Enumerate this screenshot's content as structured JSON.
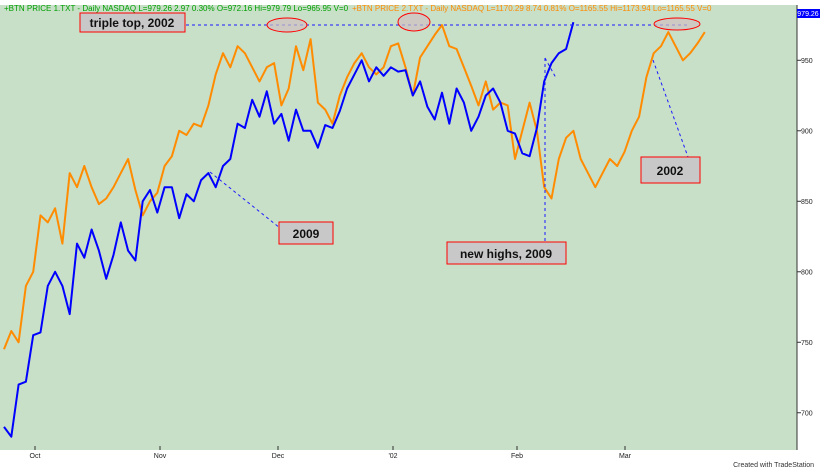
{
  "header": {
    "series1_text": "+BTN PRICE 1.TXT - Daily  NASDAQ  L=979.26  2.97  0.30%  O=972.16  Hi=979.79  Lo=965.95  V=0",
    "series2_text": "+BTN PRICE 2.TXT - Daily  NASDAQ  L=1170.29  8.74  0.81%  O=1165.55  Hi=1173.94  Lo=1165.55  V=0"
  },
  "credit": "Created with TradeStation",
  "last_price_tag": "979.26",
  "colors": {
    "background": "#c8dfc8",
    "series1": "#0000ff",
    "series2": "#ff8c00",
    "annotation_fill": "#c8c8c8",
    "annotation_border": "#ff0000",
    "dashed": "#1a1aff"
  },
  "annotations": [
    {
      "id": "triple-top-label",
      "text": "triple top, 2002"
    },
    {
      "id": "label-2009",
      "text": "2009"
    },
    {
      "id": "new-highs-label",
      "text": "new highs, 2009"
    },
    {
      "id": "label-2002",
      "text": "2002"
    }
  ],
  "chart_data": {
    "type": "line",
    "x_labels": [
      "Oct",
      "Nov",
      "Dec",
      "'02",
      "Feb",
      "Mar"
    ],
    "y_ticks": [
      700,
      750,
      800,
      850,
      900,
      950
    ],
    "ylim": [
      675,
      980
    ],
    "series": [
      {
        "name": "+BTN PRICE 1.TXT",
        "color": "#0000ff",
        "points": [
          [
            0,
            690
          ],
          [
            1,
            683
          ],
          [
            2,
            720
          ],
          [
            3,
            722
          ],
          [
            4,
            755
          ],
          [
            5,
            757
          ],
          [
            6,
            790
          ],
          [
            7,
            800
          ],
          [
            8,
            790
          ],
          [
            9,
            770
          ],
          [
            10,
            820
          ],
          [
            11,
            810
          ],
          [
            12,
            830
          ],
          [
            13,
            815
          ],
          [
            14,
            795
          ],
          [
            15,
            812
          ],
          [
            16,
            835
          ],
          [
            17,
            815
          ],
          [
            18,
            808
          ],
          [
            19,
            850
          ],
          [
            20,
            858
          ],
          [
            21,
            842
          ],
          [
            22,
            860
          ],
          [
            23,
            860
          ],
          [
            24,
            838
          ],
          [
            25,
            855
          ],
          [
            26,
            850
          ],
          [
            27,
            865
          ],
          [
            28,
            870
          ],
          [
            29,
            860
          ],
          [
            30,
            875
          ],
          [
            31,
            880
          ],
          [
            32,
            905
          ],
          [
            33,
            902
          ],
          [
            34,
            922
          ],
          [
            35,
            910
          ],
          [
            36,
            928
          ],
          [
            37,
            905
          ],
          [
            38,
            912
          ],
          [
            39,
            893
          ],
          [
            40,
            915
          ],
          [
            41,
            900
          ],
          [
            42,
            900
          ],
          [
            43,
            888
          ],
          [
            44,
            904
          ],
          [
            45,
            902
          ],
          [
            46,
            914
          ],
          [
            47,
            930
          ],
          [
            48,
            940
          ],
          [
            49,
            950
          ],
          [
            50,
            935
          ],
          [
            51,
            945
          ],
          [
            52,
            939
          ],
          [
            53,
            945
          ],
          [
            54,
            942
          ],
          [
            55,
            943
          ],
          [
            56,
            925
          ],
          [
            57,
            935
          ],
          [
            58,
            917
          ],
          [
            59,
            908
          ],
          [
            60,
            927
          ],
          [
            61,
            905
          ],
          [
            62,
            930
          ],
          [
            63,
            920
          ],
          [
            64,
            900
          ],
          [
            65,
            910
          ],
          [
            66,
            925
          ],
          [
            67,
            930
          ],
          [
            68,
            920
          ],
          [
            69,
            900
          ],
          [
            70,
            898
          ],
          [
            71,
            884
          ],
          [
            72,
            882
          ],
          [
            73,
            902
          ],
          [
            74,
            935
          ],
          [
            75,
            948
          ],
          [
            76,
            955
          ],
          [
            77,
            958
          ],
          [
            78,
            977
          ]
        ]
      },
      {
        "name": "+BTN PRICE 2.TXT",
        "color": "#ff8c00",
        "points": [
          [
            0,
            745
          ],
          [
            1,
            758
          ],
          [
            2,
            750
          ],
          [
            3,
            790
          ],
          [
            4,
            800
          ],
          [
            5,
            840
          ],
          [
            6,
            835
          ],
          [
            7,
            845
          ],
          [
            8,
            820
          ],
          [
            9,
            870
          ],
          [
            10,
            860
          ],
          [
            11,
            875
          ],
          [
            12,
            860
          ],
          [
            13,
            848
          ],
          [
            14,
            852
          ],
          [
            15,
            860
          ],
          [
            16,
            870
          ],
          [
            17,
            880
          ],
          [
            18,
            858
          ],
          [
            19,
            840
          ],
          [
            20,
            850
          ],
          [
            21,
            856
          ],
          [
            22,
            875
          ],
          [
            23,
            882
          ],
          [
            24,
            900
          ],
          [
            25,
            897
          ],
          [
            26,
            905
          ],
          [
            27,
            903
          ],
          [
            28,
            918
          ],
          [
            29,
            940
          ],
          [
            30,
            955
          ],
          [
            31,
            945
          ],
          [
            32,
            960
          ],
          [
            33,
            955
          ],
          [
            34,
            945
          ],
          [
            35,
            935
          ],
          [
            36,
            945
          ],
          [
            37,
            948
          ],
          [
            38,
            918
          ],
          [
            39,
            930
          ],
          [
            40,
            960
          ],
          [
            41,
            943
          ],
          [
            42,
            965
          ],
          [
            43,
            920
          ],
          [
            44,
            915
          ],
          [
            45,
            905
          ],
          [
            46,
            925
          ],
          [
            47,
            938
          ],
          [
            48,
            948
          ],
          [
            49,
            955
          ],
          [
            50,
            945
          ],
          [
            51,
            940
          ],
          [
            52,
            945
          ],
          [
            53,
            960
          ],
          [
            54,
            962
          ],
          [
            55,
            945
          ],
          [
            56,
            925
          ],
          [
            57,
            952
          ],
          [
            58,
            960
          ],
          [
            59,
            968
          ],
          [
            60,
            975
          ],
          [
            61,
            960
          ],
          [
            62,
            958
          ],
          [
            63,
            945
          ],
          [
            64,
            932
          ],
          [
            65,
            918
          ],
          [
            66,
            935
          ],
          [
            67,
            915
          ],
          [
            68,
            920
          ],
          [
            69,
            918
          ],
          [
            70,
            880
          ],
          [
            71,
            900
          ],
          [
            72,
            920
          ],
          [
            73,
            900
          ],
          [
            74,
            860
          ],
          [
            75,
            852
          ],
          [
            76,
            880
          ],
          [
            77,
            895
          ],
          [
            78,
            900
          ],
          [
            79,
            880
          ],
          [
            80,
            870
          ],
          [
            81,
            860
          ],
          [
            82,
            870
          ],
          [
            83,
            880
          ],
          [
            84,
            875
          ],
          [
            85,
            885
          ],
          [
            86,
            900
          ],
          [
            87,
            910
          ],
          [
            88,
            938
          ],
          [
            89,
            955
          ],
          [
            90,
            960
          ],
          [
            91,
            970
          ],
          [
            92,
            960
          ],
          [
            93,
            950
          ],
          [
            94,
            955
          ],
          [
            95,
            962
          ],
          [
            96,
            970
          ]
        ]
      }
    ]
  }
}
